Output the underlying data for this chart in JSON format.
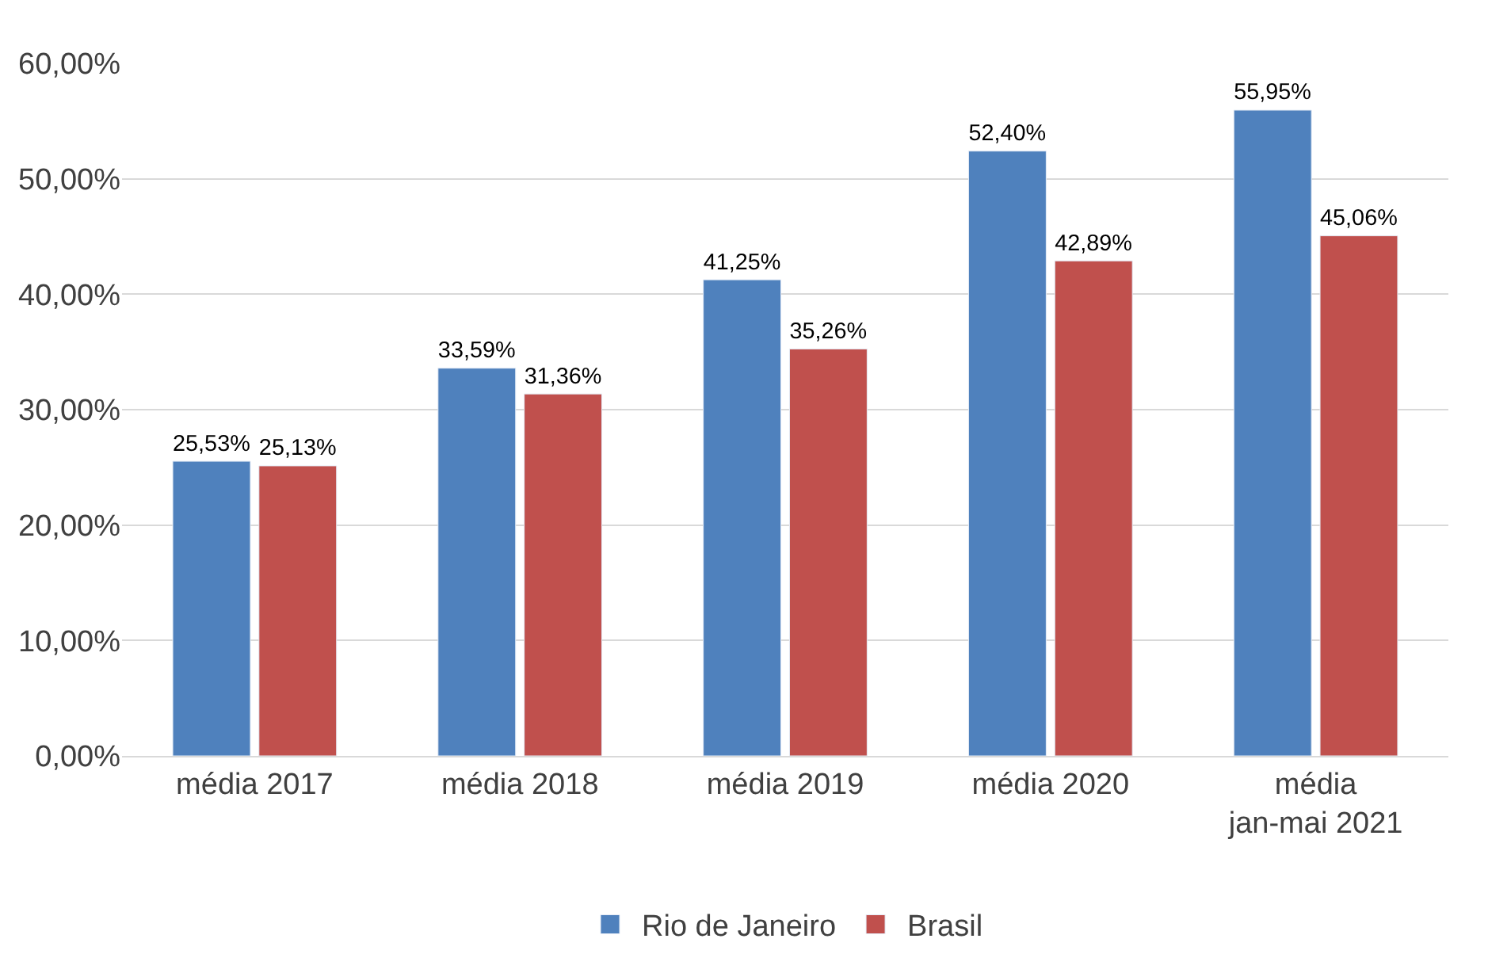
{
  "chart_data": {
    "type": "bar",
    "categories": [
      "média 2017",
      "média 2018",
      "média 2019",
      "média 2020",
      "média\njan-mai 2021"
    ],
    "series": [
      {
        "name": "Rio de Janeiro",
        "color": "#4f81bd",
        "values": [
          25.53,
          33.59,
          41.25,
          52.4,
          55.95
        ],
        "value_labels": [
          "25,53%",
          "33,59%",
          "41,25%",
          "52,40%",
          "55,95%"
        ]
      },
      {
        "name": "Brasil",
        "color": "#c0504d",
        "values": [
          25.13,
          31.36,
          35.26,
          42.89,
          45.06
        ],
        "value_labels": [
          "25,13%",
          "31,36%",
          "35,26%",
          "42,89%",
          "45,06%"
        ]
      }
    ],
    "ylim": [
      0,
      60
    ],
    "yticks": [
      {
        "value": 0,
        "label": "0,00%"
      },
      {
        "value": 10,
        "label": "10,00%"
      },
      {
        "value": 20,
        "label": "20,00%"
      },
      {
        "value": 30,
        "label": "30,00%"
      },
      {
        "value": 40,
        "label": "40,00%"
      },
      {
        "value": 50,
        "label": "50,00%"
      },
      {
        "value": 60,
        "label": "60,00%"
      }
    ],
    "grid": "y",
    "legend": "bottom"
  }
}
